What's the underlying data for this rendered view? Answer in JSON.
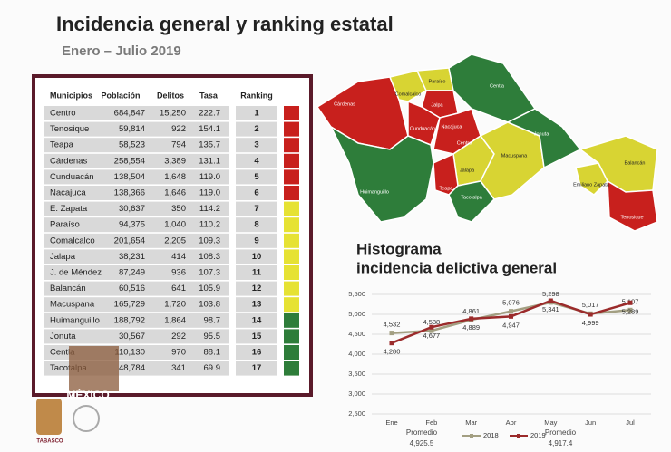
{
  "header": {
    "title": "Incidencia general  y ranking estatal",
    "subtitle": "Enero – Julio 2019"
  },
  "table": {
    "columns": [
      "Municipios",
      "Población",
      "Delitos",
      "Tasa",
      "Ranking"
    ],
    "rows": [
      [
        "Centro",
        "684,847",
        "15,250",
        "222.7",
        "1"
      ],
      [
        "Tenosique",
        "59,814",
        "922",
        "154.1",
        "2"
      ],
      [
        "Teapa",
        "58,523",
        "794",
        "135.7",
        "3"
      ],
      [
        "Cárdenas",
        "258,554",
        "3,389",
        "131.1",
        "4"
      ],
      [
        "Cunduacán",
        "138,504",
        "1,648",
        "119.0",
        "5"
      ],
      [
        "Nacajuca",
        "138,366",
        "1,646",
        "119.0",
        "6"
      ],
      [
        "E. Zapata",
        "30,637",
        "350",
        "114.2",
        "7"
      ],
      [
        "Paraíso",
        "94,375",
        "1,040",
        "110.2",
        "8"
      ],
      [
        "Comalcalco",
        "201,654",
        "2,205",
        "109.3",
        "9"
      ],
      [
        "Jalapa",
        "38,231",
        "414",
        "108.3",
        "10"
      ],
      [
        "J. de Méndez",
        "87,249",
        "936",
        "107.3",
        "11"
      ],
      [
        "Balancán",
        "60,516",
        "641",
        "105.9",
        "12"
      ],
      [
        "Macuspana",
        "165,729",
        "1,720",
        "103.8",
        "13"
      ],
      [
        "Huimanguillo",
        "188,792",
        "1,864",
        "98.7",
        "14"
      ],
      [
        "Jonuta",
        "30,567",
        "292",
        "95.5",
        "15"
      ],
      [
        "Centla",
        "110,130",
        "970",
        "88.1",
        "16"
      ],
      [
        "Tacotalpa",
        "48,784",
        "341",
        "69.9",
        "17"
      ]
    ],
    "rank_colors": [
      "#c8201d",
      "#c8201d",
      "#c8201d",
      "#c8201d",
      "#c8201d",
      "#c8201d",
      "#e6e233",
      "#e6e233",
      "#e6e233",
      "#e6e233",
      "#e6e233",
      "#e6e233",
      "#e6e233",
      "#2e7d3a",
      "#2e7d3a",
      "#2e7d3a",
      "#2e7d3a"
    ]
  },
  "map": {
    "labels": [
      "Cárdenas",
      "Comalcalco",
      "Paraíso",
      "Jalpa",
      "Nacajuca",
      "Centla",
      "Cunduacán",
      "Centro",
      "Huimanguillo",
      "Jalapa",
      "Macuspana",
      "Jonuta",
      "Teapa",
      "Tacotalpa",
      "Emiliano Zapata",
      "Balancán",
      "Tenosique"
    ]
  },
  "chart_data": {
    "type": "line",
    "title": [
      "Histograma",
      "incidencia delictiva general"
    ],
    "categories": [
      "Ene",
      "Feb",
      "Mar",
      "Abr",
      "May",
      "Jun",
      "Jul"
    ],
    "series": [
      {
        "name": "2018",
        "color": "#a39f82",
        "values": [
          4532,
          4588,
          4861,
          5076,
          5298,
          5017,
          5107
        ],
        "value_labels": [
          "4,532",
          "4,588",
          "4,861",
          "5,076",
          "5,298",
          "5,017",
          "5,107"
        ]
      },
      {
        "name": "2019",
        "color": "#9b2b2b",
        "values": [
          4280,
          4677,
          4889,
          4947,
          5341,
          4999,
          5289
        ],
        "value_labels": [
          "4,280",
          "4,677",
          "4,889",
          "4,947",
          "5,341",
          "4,999",
          "5,289"
        ]
      }
    ],
    "ylim": [
      2500,
      5500
    ],
    "yticks": [
      {
        "value": 2500,
        "label": "2,500"
      },
      {
        "value": 3000,
        "label": "3,000"
      },
      {
        "value": 3500,
        "label": "3,500"
      },
      {
        "value": 4000,
        "label": "4,000"
      },
      {
        "value": 4500,
        "label": "4,500"
      },
      {
        "value": 5000,
        "label": "5,000"
      },
      {
        "value": 5500,
        "label": "5,500"
      }
    ],
    "grid": true,
    "annotations": [
      {
        "label": "Promedio",
        "value": "4,925.5"
      },
      {
        "label": "Promedio",
        "value": "4,917.4"
      }
    ]
  },
  "logo": {
    "country": "MÉXICO",
    "state": "TABASCO"
  }
}
